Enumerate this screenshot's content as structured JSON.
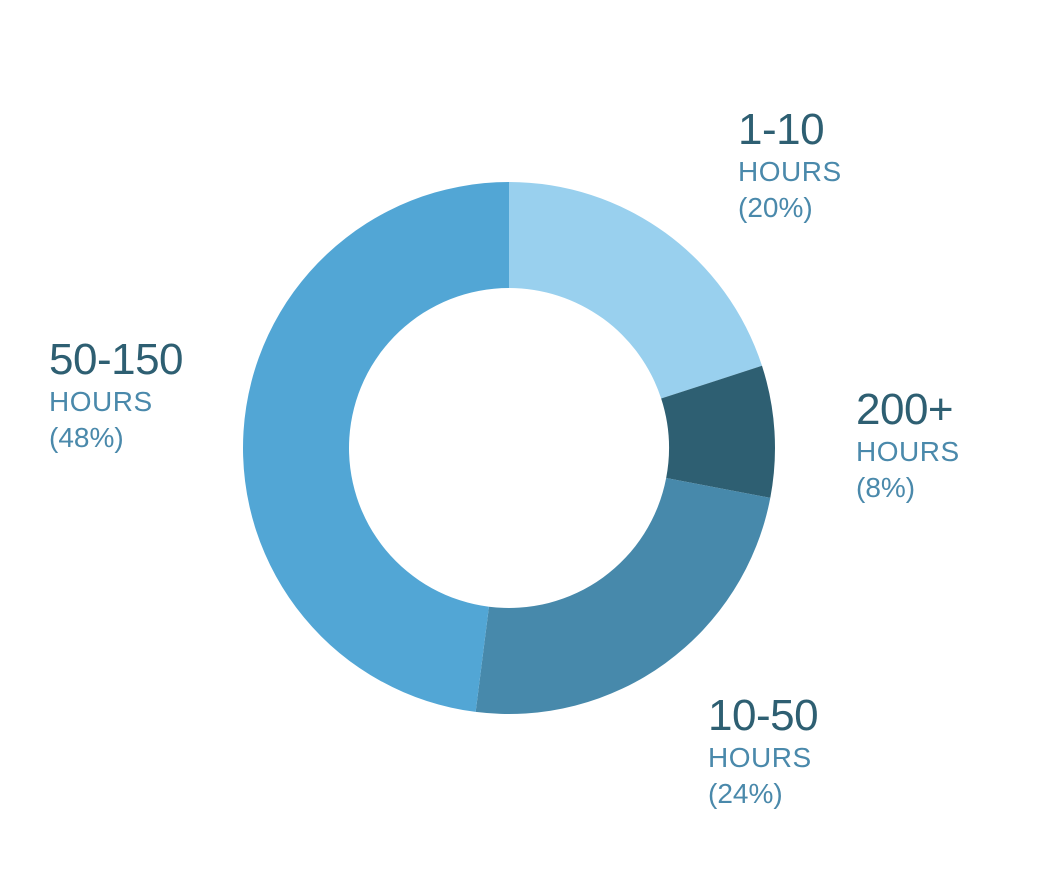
{
  "chart_data": {
    "type": "pie",
    "variant": "donut",
    "title": "",
    "slices": [
      {
        "range": "1-10",
        "unit": "HOURS",
        "pct_label": "(20%)",
        "value": 20,
        "color": "#99d0ee"
      },
      {
        "range": "200+",
        "unit": "HOURS",
        "pct_label": "(8%)",
        "value": 8,
        "color": "#2e5f72"
      },
      {
        "range": "10-50",
        "unit": "HOURS",
        "pct_label": "(24%)",
        "value": 24,
        "color": "#4789ab"
      },
      {
        "range": "50-150",
        "unit": "HOURS",
        "pct_label": "(48%)",
        "value": 48,
        "color": "#52a6d5"
      }
    ],
    "legend": "none"
  }
}
